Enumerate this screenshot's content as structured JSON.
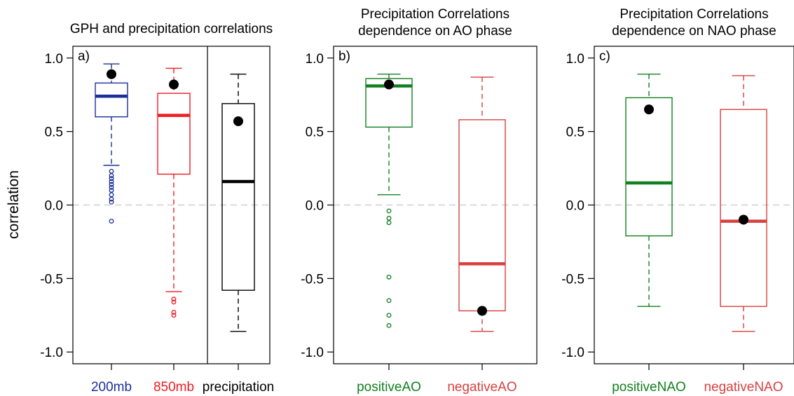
{
  "y_axis_label": "correlation",
  "chart_data": [
    {
      "type": "box",
      "panel_label": "a)",
      "title": [
        "GPH and precipitation correlations"
      ],
      "ylim": [
        -1.08,
        1.08
      ],
      "yticks": [
        1.0,
        0.5,
        0.0,
        -0.5,
        -1.0
      ],
      "tick_labels": [
        "1.0",
        "0.5",
        "0.0",
        "-0.5",
        "-1.0"
      ],
      "reference_line": 0.0,
      "grid": false,
      "divider_after_category": 1,
      "categories": [
        "200mb",
        "850mb",
        "precipitation"
      ],
      "colors": [
        "#1a2f9a",
        "#ee1c25",
        "#000000"
      ],
      "boxes": [
        {
          "whisker_low": 0.27,
          "q1": 0.6,
          "median": 0.74,
          "q3": 0.83,
          "whisker_high": 0.96,
          "outliers": [
            0.23,
            0.2,
            0.18,
            0.16,
            0.14,
            0.12,
            0.1,
            0.07,
            0.04,
            0.02,
            -0.11
          ]
        },
        {
          "whisker_low": -0.59,
          "q1": 0.21,
          "median": 0.61,
          "q3": 0.76,
          "whisker_high": 0.93,
          "outliers": [
            -0.64,
            -0.66,
            -0.73,
            -0.75
          ]
        },
        {
          "whisker_low": -0.86,
          "q1": -0.58,
          "median": 0.16,
          "q3": 0.69,
          "whisker_high": 0.89,
          "outliers": []
        }
      ],
      "points": [
        0.89,
        0.82,
        0.57
      ]
    },
    {
      "type": "box",
      "panel_label": "b)",
      "title": [
        "Precipitation Correlations",
        "dependence on AO phase"
      ],
      "ylim": [
        -1.08,
        1.08
      ],
      "yticks": [
        1.0,
        0.5,
        0.0,
        -0.5,
        -1.0
      ],
      "tick_labels": [
        "1.0",
        "0.5",
        "0.0",
        "-0.5",
        "-1.0"
      ],
      "reference_line": 0.0,
      "grid": false,
      "categories": [
        "positiveAO",
        "negativeAO"
      ],
      "colors": [
        "#11801f",
        "#d84040"
      ],
      "boxes": [
        {
          "whisker_low": 0.07,
          "q1": 0.53,
          "median": 0.81,
          "q3": 0.86,
          "whisker_high": 0.89,
          "outliers": [
            -0.04,
            -0.09,
            -0.12,
            -0.49,
            -0.65,
            -0.75,
            -0.82
          ]
        },
        {
          "whisker_low": -0.86,
          "q1": -0.72,
          "median": -0.4,
          "q3": 0.58,
          "whisker_high": 0.87,
          "outliers": []
        }
      ],
      "points": [
        0.82,
        -0.72
      ]
    },
    {
      "type": "box",
      "panel_label": "c)",
      "title": [
        "Precipitation Correlations",
        "dependence on NAO phase"
      ],
      "ylim": [
        -1.08,
        1.08
      ],
      "yticks": [
        1.0,
        0.5,
        0.0,
        -0.5,
        -1.0
      ],
      "tick_labels": [
        "1.0",
        "0.5",
        "0.0",
        "-0.5",
        "-1.0"
      ],
      "reference_line": 0.0,
      "grid": false,
      "categories": [
        "positiveNAO",
        "negativeNAO"
      ],
      "colors": [
        "#11801f",
        "#d84040"
      ],
      "boxes": [
        {
          "whisker_low": -0.69,
          "q1": -0.21,
          "median": 0.15,
          "q3": 0.73,
          "whisker_high": 0.89,
          "outliers": []
        },
        {
          "whisker_low": -0.86,
          "q1": -0.69,
          "median": -0.11,
          "q3": 0.65,
          "whisker_high": 0.88,
          "outliers": []
        }
      ],
      "points": [
        0.65,
        -0.1
      ]
    }
  ]
}
